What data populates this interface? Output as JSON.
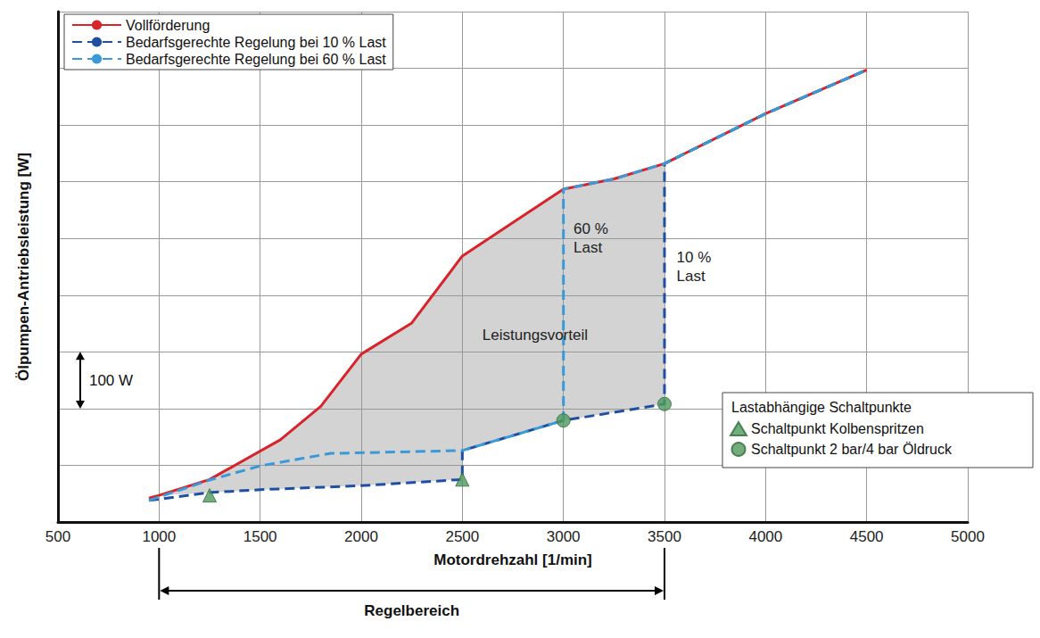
{
  "chart_data": {
    "type": "line",
    "x_label": "Motordrehzahl [1/min]",
    "y_label": "Ölpumpen-Antriebsleistung [W]",
    "xlim": [
      500,
      5000
    ],
    "xticks": [
      500,
      1000,
      1500,
      2000,
      2500,
      3000,
      3500,
      4000,
      4500,
      5000
    ],
    "ylim": [
      0,
      900
    ],
    "yticks": [
      0,
      100,
      200,
      300,
      400,
      500,
      600,
      700,
      800,
      900
    ],
    "grid": true,
    "tick_labels": "x",
    "legend": "upper left",
    "series": [
      {
        "name": "Vollförderung",
        "color": "#d9232a",
        "line_style": "solid",
        "x": [
          950,
          1000,
          1250,
          1600,
          1800,
          2000,
          2250,
          2500,
          3000,
          3250,
          3500,
          4000,
          4500
        ],
        "values": [
          42,
          47,
          75,
          145,
          204,
          296,
          351,
          469,
          587,
          605,
          632,
          720,
          797
        ]
      },
      {
        "name": "Bedarfsgerechte Regelung bei 10 % Last",
        "color": "#1f4fa0",
        "line_style": "dashed",
        "x": [
          950,
          1250,
          1500,
          2000,
          2500,
          2500,
          3000,
          3500,
          3500,
          4000,
          4500
        ],
        "values": [
          38,
          52,
          57,
          64,
          75,
          126,
          179,
          208,
          632,
          720,
          797
        ]
      },
      {
        "name": "Bedarfsgerechte Regelung bei 60 % Last",
        "color": "#3a9ad9",
        "line_style": "dashed",
        "x": [
          950,
          1250,
          1500,
          1850,
          2500,
          3000,
          3000,
          3250,
          3500,
          4000,
          4500
        ],
        "values": [
          38,
          74,
          99,
          121,
          126,
          179,
          587,
          605,
          632,
          720,
          797
        ]
      }
    ],
    "switch_points": {
      "title": "Lastabhängige Schaltpunkte",
      "legend": "lower right",
      "series": [
        {
          "name": "Schaltpunkt Kolbenspritzen",
          "type": "scatter",
          "marker": "triangle",
          "color": "#4f9a5c",
          "x": [
            1250,
            2500
          ],
          "values": [
            47,
            75
          ]
        },
        {
          "name": "Schaltpunkt 2 bar/4 bar Öldruck",
          "type": "scatter",
          "marker": "circle",
          "color": "#4f9a5c",
          "x": [
            3000,
            3500
          ],
          "values": [
            179,
            208
          ]
        }
      ]
    },
    "shading": {
      "label": "Leistungsvorteil",
      "x": 2860,
      "y": 330,
      "between": [
        "Vollförderung",
        "Bedarfsgerechte Regelung bei 10 % Last"
      ]
    },
    "annotations": [
      {
        "text": "60 %\nLast",
        "x": 3050,
        "y": 500
      },
      {
        "text": "10 %\nLast",
        "x": 3560,
        "y": 450
      }
    ],
    "scale_bar": {
      "label": "100 W",
      "value": 100,
      "x": 610,
      "y": 200
    },
    "regelbereich": {
      "label": "Regelbereich",
      "range": [
        1000,
        3500
      ]
    }
  }
}
